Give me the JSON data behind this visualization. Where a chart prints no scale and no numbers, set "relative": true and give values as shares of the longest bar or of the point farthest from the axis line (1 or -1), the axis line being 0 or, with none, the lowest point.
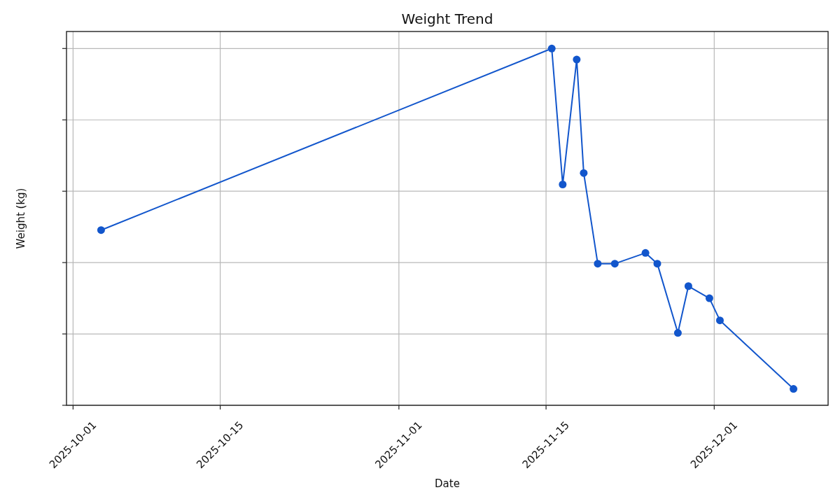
{
  "chart_data": {
    "type": "line",
    "title": "Weight Trend",
    "xlabel": "Date",
    "ylabel": "Weight (kg)",
    "relative": true,
    "x": [
      "2025-10-03T16:00",
      "2025-11-15T13:00",
      "2025-11-16T14:00",
      "2025-11-17T22:00",
      "2025-11-18T14:00",
      "2025-11-19T22:00",
      "2025-11-21T13:00",
      "2025-11-24T11:00",
      "2025-11-25T14:00",
      "2025-11-27T13:00",
      "2025-11-28T13:00",
      "2025-11-30T13:00",
      "2025-12-01T13:00",
      "2025-12-08T13:00"
    ],
    "series": [
      {
        "color": "#1256cc",
        "values": [
          0.491,
          1.0,
          0.619,
          0.969,
          0.651,
          0.397,
          0.397,
          0.427,
          0.397,
          0.203,
          0.334,
          0.3,
          0.238,
          0.046
        ]
      }
    ],
    "xlim": [
      "2025-09-30T09:00",
      "2025-12-11T20:00"
    ],
    "xticks": [
      "2025-10-01",
      "2025-10-15",
      "2025-11-01",
      "2025-11-15",
      "2025-12-01"
    ],
    "grid": true,
    "marker": "circle",
    "line_style": "solid"
  }
}
